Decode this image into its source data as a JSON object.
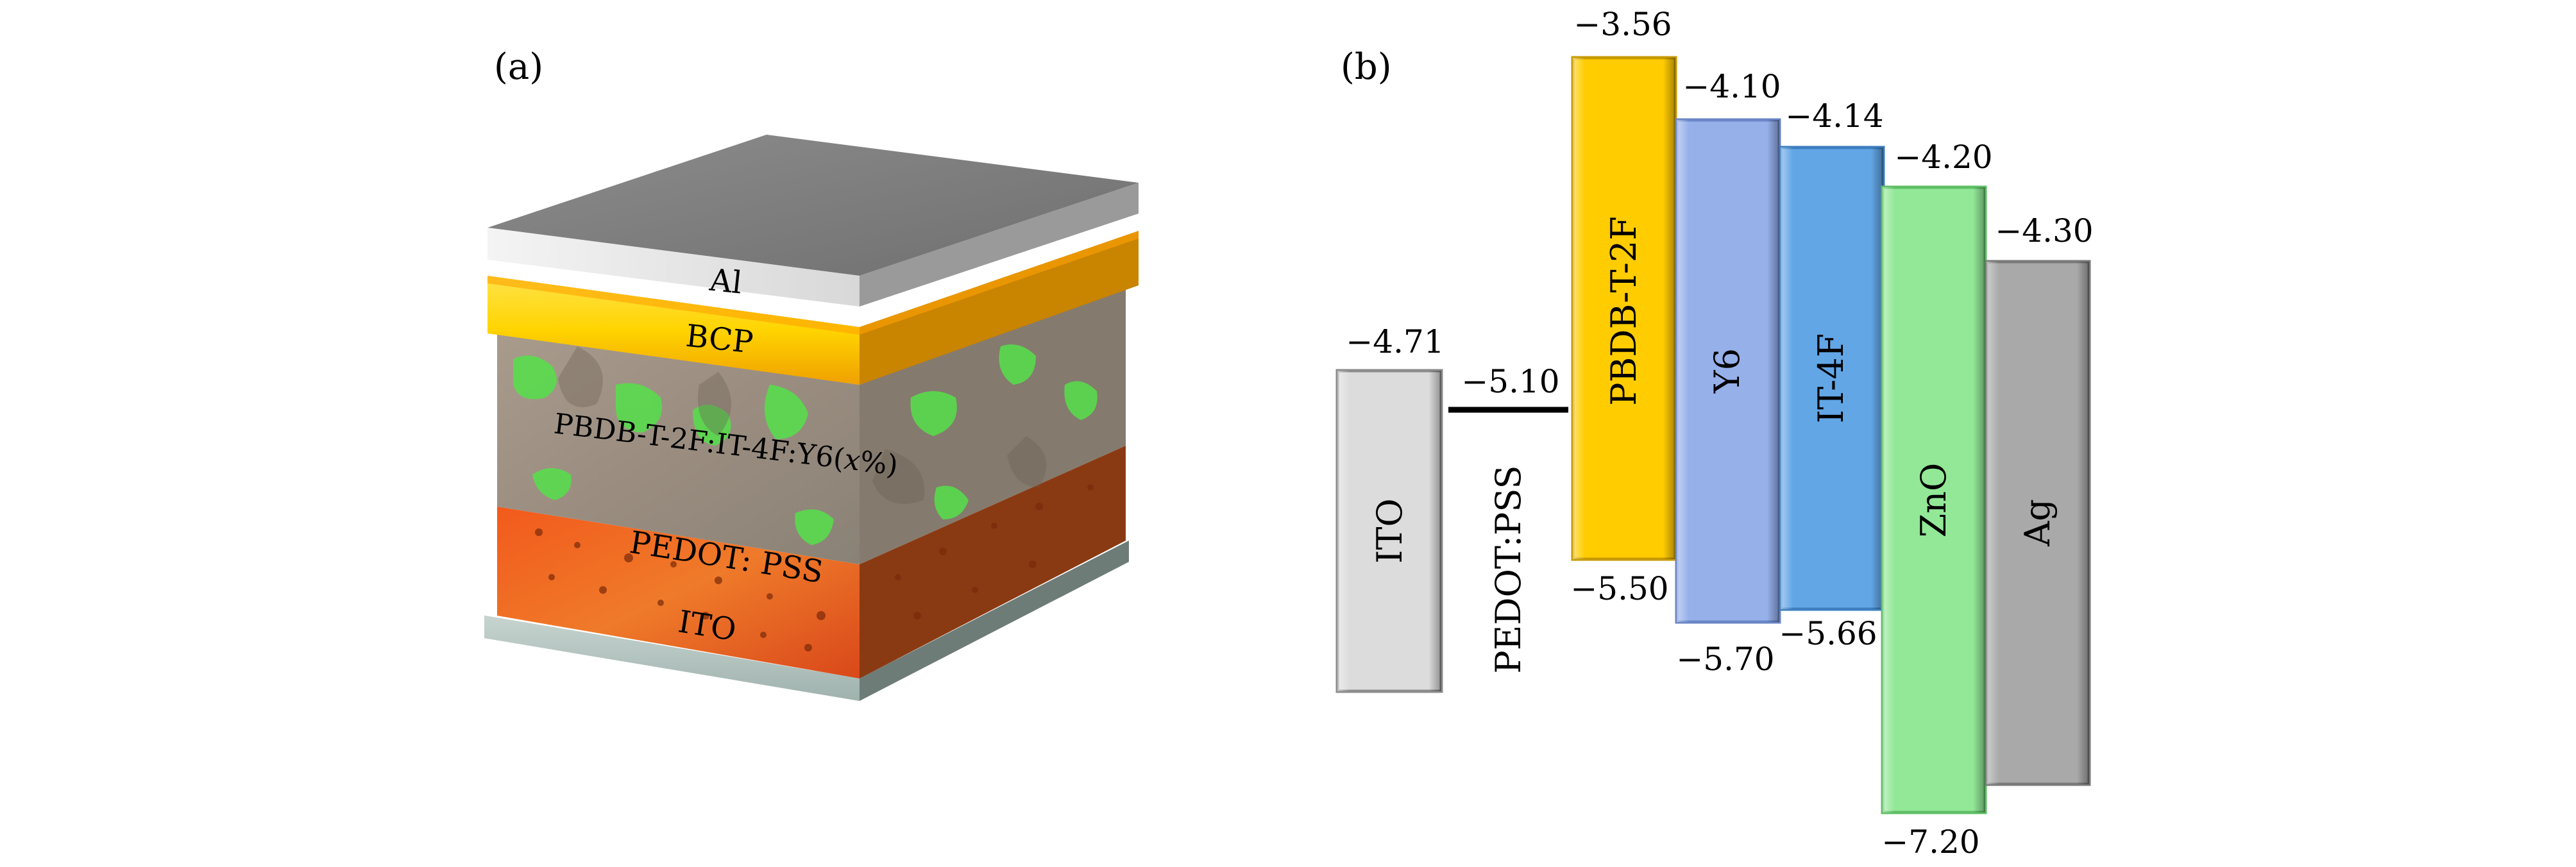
{
  "panel_a": {
    "label": "(a)",
    "layers": {
      "al": "Al",
      "bcp": "BCP",
      "active_prefix": "PBDB-T-2F:IT-4F:Y6(",
      "active_var": "x",
      "active_suffix": "%)",
      "pedot": "PEDOT: PSS",
      "ito": "ITO"
    }
  },
  "panel_b": {
    "label": "(b)",
    "materials": [
      {
        "name": "ITO",
        "top": "−4.71",
        "bottom": "",
        "color": "#dcdcdc"
      },
      {
        "name": "PBDB-T-2F",
        "top": "−3.56",
        "bottom": "−5.50",
        "color": "#ffcc00"
      },
      {
        "name": "Y6",
        "top": "−4.10",
        "bottom": "−5.70",
        "color": "#96b0ea"
      },
      {
        "name": "IT-4F",
        "top": "−4.14",
        "bottom": "−5.66",
        "color": "#62a6e6"
      },
      {
        "name": "ZnO",
        "top": "−4.20",
        "bottom": "−7.20",
        "color": "#92e897"
      },
      {
        "name": "Ag",
        "top": "−4.30",
        "bottom": "",
        "color": "#a9a9a9"
      }
    ],
    "pedot": {
      "name": "PEDOT:PSS",
      "level": "−5.10"
    }
  }
}
